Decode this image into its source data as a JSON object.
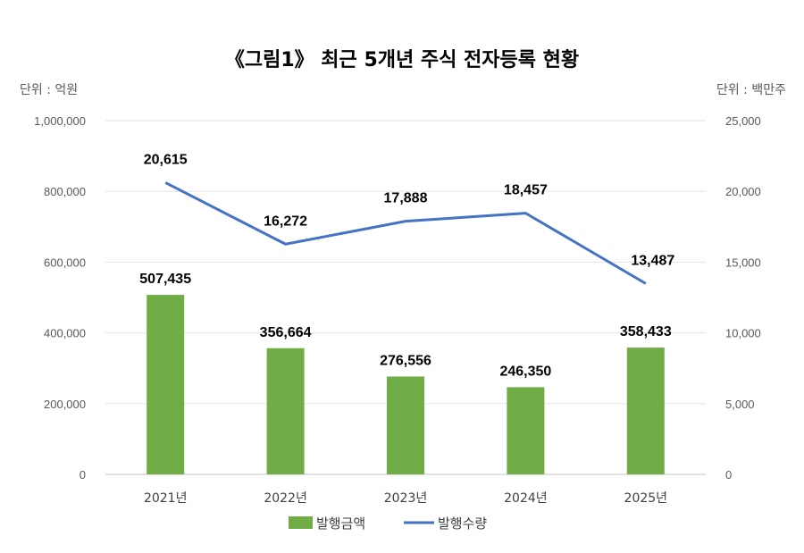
{
  "chart_data": {
    "type": "bar+line",
    "title": "《그림1》 최근 5개년 주식 전자등록 현황",
    "left_unit": "단위 : 억원",
    "right_unit": "단위 : 백만주",
    "categories": [
      "2021년",
      "2022년",
      "2023년",
      "2024년",
      "2025년"
    ],
    "series": [
      {
        "name": "발행금액",
        "type": "bar",
        "axis": "left",
        "color": "#70ad47",
        "values": [
          507435,
          356664,
          276556,
          246350,
          358433
        ],
        "labels": [
          "507,435",
          "356,664",
          "276,556",
          "246,350",
          "358,433"
        ]
      },
      {
        "name": "발행수량",
        "type": "line",
        "axis": "right",
        "color": "#4472c4",
        "values": [
          20615,
          16272,
          17888,
          18457,
          13487
        ],
        "labels": [
          "20,615",
          "16,272",
          "17,888",
          "18,457",
          "13,487"
        ]
      }
    ],
    "y_left": {
      "range": [
        0,
        1000000
      ],
      "ticks": [
        "0",
        "200,000",
        "400,000",
        "600,000",
        "800,000",
        "1,000,000"
      ]
    },
    "y_right": {
      "range": [
        0,
        25000
      ],
      "ticks": [
        "0",
        "5,000",
        "10,000",
        "15,000",
        "20,000",
        "25,000"
      ]
    },
    "grid": true,
    "legend": "bottom"
  }
}
